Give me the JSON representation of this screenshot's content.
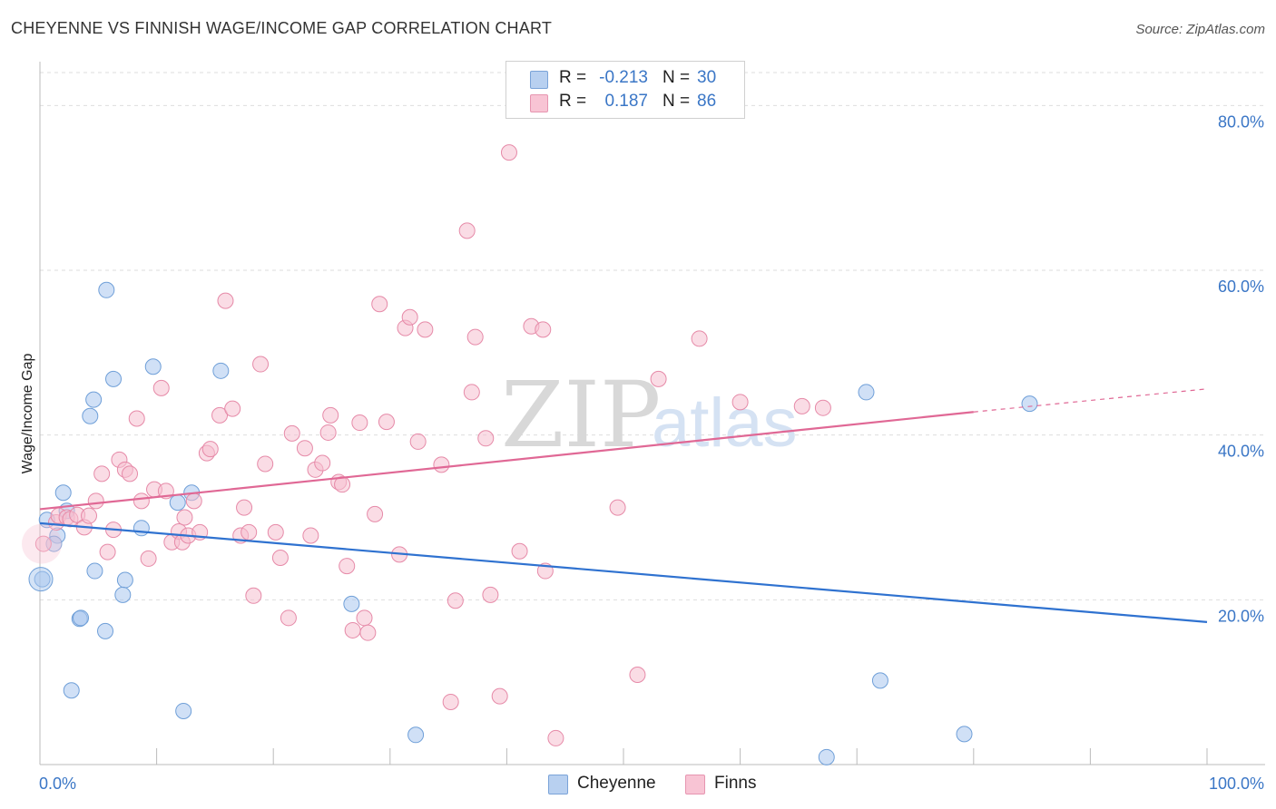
{
  "header": {
    "title": "CHEYENNE VS FINNISH WAGE/INCOME GAP CORRELATION CHART",
    "source": "Source: ZipAtlas.com"
  },
  "legend": {
    "rows": [
      {
        "r_label": "R =",
        "r_value": "-0.213",
        "n_label": "N =",
        "n_value": "30",
        "color": "#b8d0f0",
        "border": "#7aa3d8"
      },
      {
        "r_label": "R =",
        "r_value": "0.187",
        "n_label": "N =",
        "n_value": "86",
        "color": "#f8c4d4",
        "border": "#e695b0"
      }
    ]
  },
  "bottom_legend": {
    "items": [
      {
        "label": "Cheyenne",
        "color": "#b8d0f0",
        "border": "#7aa3d8"
      },
      {
        "label": "Finns",
        "color": "#f8c4d4",
        "border": "#e695b0"
      }
    ]
  },
  "watermark": {
    "zip": "ZIP",
    "atlas": "atlas"
  },
  "chart_data": {
    "type": "scatter",
    "title": "CHEYENNE VS FINNISH WAGE/INCOME GAP CORRELATION CHART",
    "xlabel": "",
    "ylabel": "Wage/Income Gap",
    "xlim": [
      0,
      100
    ],
    "ylim": [
      0,
      84
    ],
    "x_tick_labels": [
      {
        "value": 0,
        "label": "0.0%"
      },
      {
        "value": 100,
        "label": "100.0%"
      }
    ],
    "y_tick_labels": [
      {
        "value": 20,
        "label": "20.0%"
      },
      {
        "value": 40,
        "label": "40.0%"
      },
      {
        "value": 60,
        "label": "60.0%"
      },
      {
        "value": 80,
        "label": "80.0%"
      }
    ],
    "x_minor_ticks": [
      10,
      20,
      30,
      40,
      50,
      60,
      70,
      80,
      90,
      100
    ],
    "grid": true,
    "series": [
      {
        "name": "Cheyenne",
        "color": "#a9c7ee",
        "stroke": "#6f9fd8",
        "trend_color": "#2f72d0",
        "trend": {
          "x1": 0,
          "y1": 29.3,
          "x2": 100,
          "y2": 17.3
        },
        "points": [
          [
            0.2,
            22.5
          ],
          [
            1.5,
            27.8
          ],
          [
            2.0,
            33.0
          ],
          [
            2.3,
            30.8
          ],
          [
            1.2,
            26.8
          ],
          [
            4.6,
            44.3
          ],
          [
            4.3,
            42.3
          ],
          [
            4.7,
            23.5
          ],
          [
            5.7,
            57.6
          ],
          [
            6.3,
            46.8
          ],
          [
            7.3,
            22.4
          ],
          [
            7.1,
            20.6
          ],
          [
            8.7,
            28.7
          ],
          [
            9.7,
            48.3
          ],
          [
            11.8,
            31.8
          ],
          [
            13.0,
            33.0
          ],
          [
            12.3,
            6.5
          ],
          [
            15.5,
            47.8
          ],
          [
            3.4,
            17.7
          ],
          [
            3.5,
            17.8
          ],
          [
            5.6,
            16.2
          ],
          [
            2.7,
            9.0
          ],
          [
            26.7,
            19.5
          ],
          [
            32.2,
            3.6
          ],
          [
            67.4,
            0.9
          ],
          [
            70.8,
            45.2
          ],
          [
            72.0,
            10.2
          ],
          [
            79.2,
            3.7
          ],
          [
            84.8,
            43.8
          ],
          [
            0.6,
            29.7
          ]
        ]
      },
      {
        "name": "Finns",
        "color": "#f6bfd0",
        "stroke": "#e68aa8",
        "trend_color": "#e06895",
        "trend": {
          "x1": 0,
          "y1": 31.0,
          "x2": 80,
          "y2": 42.8
        },
        "trend_dashed_to": {
          "x": 100,
          "y": 45.6
        },
        "points": [
          [
            0.3,
            26.8
          ],
          [
            1.4,
            29.4
          ],
          [
            1.6,
            30.2
          ],
          [
            2.3,
            30.0
          ],
          [
            2.6,
            29.8
          ],
          [
            3.2,
            30.3
          ],
          [
            3.8,
            28.8
          ],
          [
            4.2,
            30.2
          ],
          [
            4.8,
            32.0
          ],
          [
            5.3,
            35.3
          ],
          [
            5.8,
            25.8
          ],
          [
            6.3,
            28.5
          ],
          [
            6.8,
            37.0
          ],
          [
            7.3,
            35.8
          ],
          [
            7.7,
            35.3
          ],
          [
            8.3,
            42.0
          ],
          [
            8.7,
            32.0
          ],
          [
            9.3,
            25.0
          ],
          [
            9.8,
            33.4
          ],
          [
            10.4,
            45.7
          ],
          [
            10.8,
            33.2
          ],
          [
            11.3,
            27.0
          ],
          [
            11.9,
            28.3
          ],
          [
            12.2,
            27.0
          ],
          [
            12.4,
            30.0
          ],
          [
            12.7,
            27.8
          ],
          [
            13.2,
            32.0
          ],
          [
            13.7,
            28.2
          ],
          [
            14.3,
            37.8
          ],
          [
            14.6,
            38.3
          ],
          [
            15.4,
            42.4
          ],
          [
            15.9,
            56.3
          ],
          [
            16.5,
            43.2
          ],
          [
            17.2,
            27.8
          ],
          [
            17.5,
            31.2
          ],
          [
            17.9,
            28.2
          ],
          [
            18.3,
            20.5
          ],
          [
            18.9,
            48.6
          ],
          [
            19.3,
            36.5
          ],
          [
            20.2,
            28.2
          ],
          [
            20.6,
            25.1
          ],
          [
            21.3,
            17.8
          ],
          [
            21.6,
            40.2
          ],
          [
            22.7,
            38.4
          ],
          [
            23.2,
            27.8
          ],
          [
            23.6,
            35.8
          ],
          [
            24.2,
            36.6
          ],
          [
            24.7,
            40.3
          ],
          [
            24.9,
            42.4
          ],
          [
            25.6,
            34.3
          ],
          [
            25.9,
            34.0
          ],
          [
            26.3,
            24.1
          ],
          [
            26.8,
            16.3
          ],
          [
            27.4,
            41.5
          ],
          [
            27.8,
            17.8
          ],
          [
            28.1,
            16.0
          ],
          [
            28.7,
            30.4
          ],
          [
            29.1,
            55.9
          ],
          [
            29.7,
            41.6
          ],
          [
            30.8,
            25.5
          ],
          [
            31.3,
            53.0
          ],
          [
            31.7,
            54.3
          ],
          [
            32.4,
            39.2
          ],
          [
            33.0,
            52.8
          ],
          [
            34.4,
            36.4
          ],
          [
            35.2,
            7.6
          ],
          [
            35.6,
            19.9
          ],
          [
            36.6,
            64.8
          ],
          [
            37.0,
            45.2
          ],
          [
            37.3,
            51.9
          ],
          [
            38.2,
            39.6
          ],
          [
            38.6,
            20.6
          ],
          [
            39.4,
            8.3
          ],
          [
            40.2,
            74.3
          ],
          [
            41.1,
            25.9
          ],
          [
            42.1,
            53.2
          ],
          [
            43.1,
            52.8
          ],
          [
            43.3,
            23.5
          ],
          [
            44.2,
            3.2
          ],
          [
            49.5,
            31.2
          ],
          [
            51.2,
            10.9
          ],
          [
            53.0,
            46.8
          ],
          [
            56.5,
            51.7
          ],
          [
            60.0,
            44.0
          ],
          [
            65.3,
            43.5
          ],
          [
            67.1,
            43.3
          ]
        ]
      }
    ]
  }
}
